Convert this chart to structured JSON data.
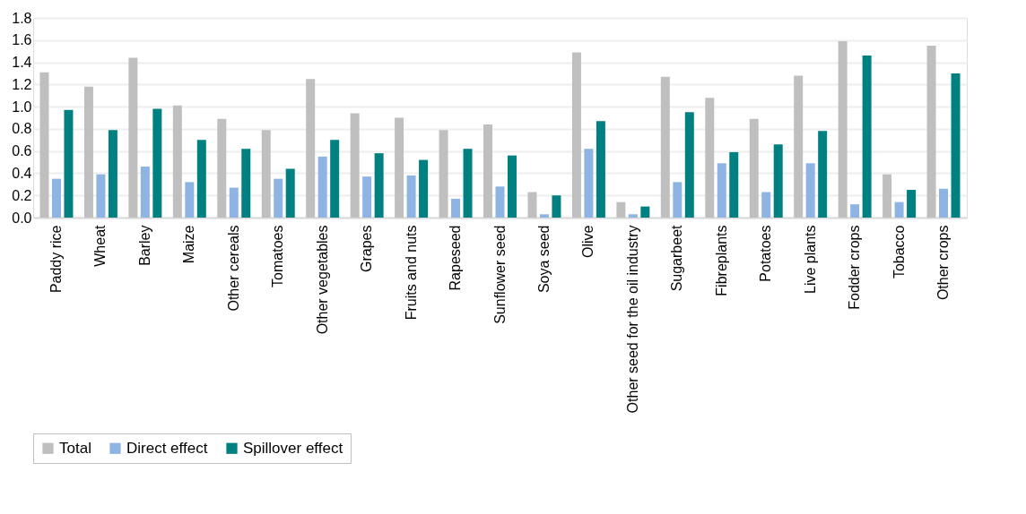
{
  "chart_data": {
    "type": "bar",
    "categories": [
      "Paddy rice",
      "Wheat",
      "Barley",
      "Maize",
      "Other cereals",
      "Tomatoes",
      "Other vegetables",
      "Grapes",
      "Fruits and nuts",
      "Rapeseed",
      "Sunflower seed",
      "Soya seed",
      "Olive",
      "Other seed  for the oil industry",
      "Sugarbeet",
      "Fibreplants",
      "Potatoes",
      "Live plants",
      "Fodder crops",
      "Tobacco",
      "Other crops"
    ],
    "series": [
      {
        "name": "Total",
        "color": "#bfbfbf",
        "values": [
          1.31,
          1.18,
          1.44,
          1.01,
          0.89,
          0.79,
          1.25,
          0.94,
          0.9,
          0.79,
          0.84,
          0.23,
          1.49,
          0.14,
          1.27,
          1.08,
          0.89,
          1.28,
          1.59,
          0.39,
          1.55
        ]
      },
      {
        "name": "Direct effect",
        "color": "#8eb4e3",
        "values": [
          0.35,
          0.39,
          0.46,
          0.32,
          0.27,
          0.35,
          0.55,
          0.37,
          0.38,
          0.17,
          0.28,
          0.03,
          0.62,
          0.03,
          0.32,
          0.49,
          0.23,
          0.49,
          0.12,
          0.14,
          0.26
        ]
      },
      {
        "name": "Spillover effect",
        "color": "#008080",
        "values": [
          0.97,
          0.79,
          0.98,
          0.7,
          0.62,
          0.44,
          0.7,
          0.58,
          0.52,
          0.62,
          0.56,
          0.2,
          0.87,
          0.1,
          0.95,
          0.59,
          0.66,
          0.78,
          1.46,
          0.25,
          1.3
        ]
      }
    ],
    "ylim": [
      0,
      1.8
    ],
    "yticks": [
      {
        "value": 0,
        "label": "0.0"
      },
      {
        "value": 0.2,
        "label": "0.2"
      },
      {
        "value": 0.4,
        "label": "0.4"
      },
      {
        "value": 0.6,
        "label": "0.6"
      },
      {
        "value": 0.8,
        "label": "0.8"
      },
      {
        "value": 1.0,
        "label": "1.0"
      },
      {
        "value": 1.2,
        "label": "1.2"
      },
      {
        "value": 1.4,
        "label": "1.4"
      },
      {
        "value": 1.6,
        "label": "1.6"
      },
      {
        "value": 1.8,
        "label": "1.8"
      }
    ],
    "grid": "y",
    "legend": "bottom"
  }
}
